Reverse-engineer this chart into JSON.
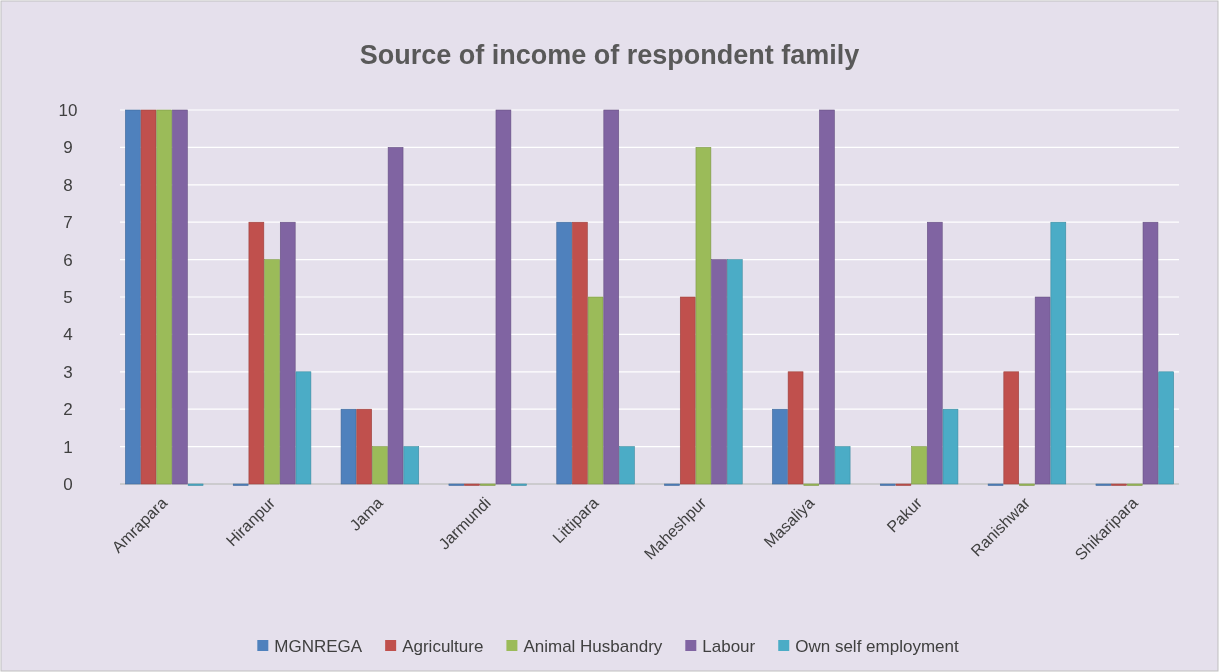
{
  "chart_data": {
    "type": "bar",
    "title": "Source of income of respondent family",
    "categories": [
      "Amrapara",
      "Hiranpur",
      "Jama",
      "Jarmundi",
      "Littipara",
      "Maheshpur",
      "Masaliya",
      "Pakur",
      "Ranishwar",
      "Shikaripara"
    ],
    "series": [
      {
        "name": "MGNREGA",
        "color": "#4f81bd",
        "values": [
          10,
          0,
          2,
          0,
          7,
          0,
          2,
          0,
          0,
          0
        ]
      },
      {
        "name": "Agriculture",
        "color": "#c0504d",
        "values": [
          10,
          7,
          2,
          0,
          7,
          5,
          3,
          0,
          3,
          0
        ]
      },
      {
        "name": "Animal Husbandry",
        "color": "#9bbb59",
        "values": [
          10,
          6,
          1,
          0,
          5,
          9,
          0,
          1,
          0,
          0
        ]
      },
      {
        "name": "Labour",
        "color": "#8064a2",
        "values": [
          10,
          7,
          9,
          10,
          10,
          6,
          10,
          7,
          5,
          7
        ]
      },
      {
        "name": "Own self employment",
        "color": "#4bacc6",
        "values": [
          0,
          3,
          1,
          0,
          1,
          6,
          1,
          2,
          7,
          3
        ]
      }
    ],
    "ylim": [
      0,
      10
    ],
    "yticks": [
      0,
      1,
      2,
      3,
      4,
      5,
      6,
      7,
      8,
      9,
      10
    ],
    "grid": "y",
    "legend": "bottom"
  }
}
